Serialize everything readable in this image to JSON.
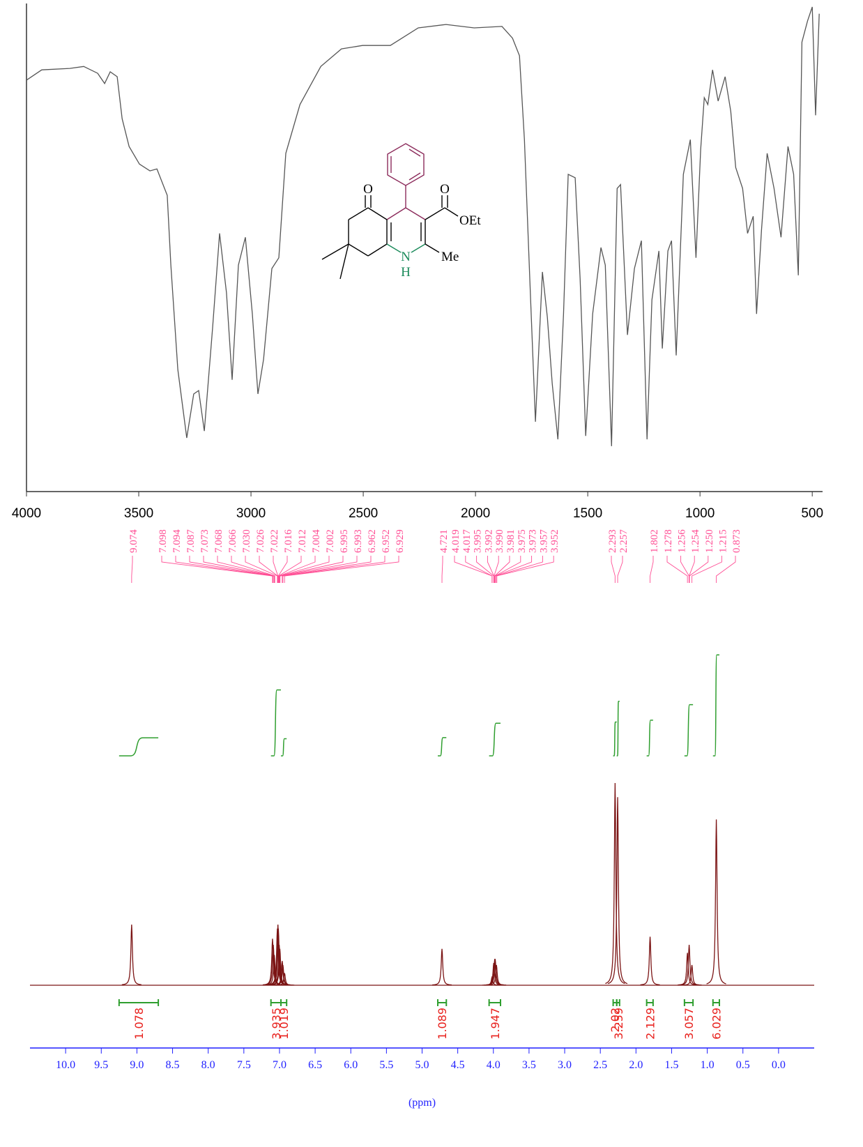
{
  "chart_data": [
    {
      "type": "line",
      "color": "#555555",
      "xlim": [
        4000,
        454
      ],
      "ylim": [
        0,
        100
      ],
      "xticks": [
        4000,
        3500,
        3000,
        2500,
        2000,
        1500,
        1000,
        500
      ],
      "x": [
        4000,
        3932,
        3807,
        3745,
        3683,
        3652,
        3627,
        3596,
        3574,
        3543,
        3497,
        3450,
        3419,
        3373,
        3357,
        3326,
        3286,
        3255,
        3233,
        3208,
        3171,
        3140,
        3109,
        3084,
        3056,
        3025,
        2994,
        2969,
        2944,
        2907,
        2876,
        2845,
        2782,
        2689,
        2597,
        2503,
        2379,
        2255,
        2131,
        2006,
        1882,
        1835,
        1804,
        1782,
        1758,
        1733,
        1702,
        1680,
        1658,
        1633,
        1608,
        1587,
        1556,
        1534,
        1509,
        1478,
        1441,
        1422,
        1394,
        1369,
        1354,
        1323,
        1292,
        1261,
        1236,
        1214,
        1183,
        1168,
        1143,
        1127,
        1106,
        1074,
        1043,
        1018,
        997,
        981,
        965,
        944,
        919,
        888,
        863,
        841,
        810,
        788,
        763,
        748,
        726,
        701,
        670,
        639,
        608,
        583,
        562,
        546,
        521,
        500,
        485,
        469
      ],
      "values": [
        84.3,
        86.4,
        86.7,
        87.1,
        85.7,
        83.6,
        86,
        85,
        76.4,
        70.7,
        67.1,
        65.7,
        66.1,
        60.7,
        46.4,
        25,
        11,
        20,
        20.7,
        12.4,
        33.6,
        52.9,
        40.7,
        22.9,
        46.4,
        52.1,
        36.4,
        20,
        27.1,
        45.7,
        47.9,
        69.3,
        79.3,
        87.1,
        90.7,
        91.4,
        91.4,
        95,
        95.7,
        95,
        95.3,
        92.9,
        89.3,
        72.1,
        43.6,
        14.3,
        45,
        35.7,
        22.1,
        10.7,
        36.4,
        65,
        64.3,
        43.6,
        11.4,
        36.4,
        50,
        46.4,
        9.3,
        62.1,
        62.9,
        32.1,
        45.7,
        51.4,
        10.7,
        39.3,
        49.3,
        29.3,
        49.3,
        51.4,
        27.9,
        65,
        72.1,
        47.9,
        70,
        80.7,
        79.3,
        86.4,
        80,
        85,
        77.9,
        66.4,
        62.1,
        52.9,
        56.4,
        36.4,
        53.6,
        69.3,
        62.1,
        52.1,
        70.7,
        65,
        44.3,
        92.1,
        96.4,
        99.3,
        77.1,
        97.9
      ]
    },
    {
      "type": "nmr",
      "color": "#7b1414",
      "xlim": [
        10.5,
        -0.5
      ],
      "ylim": [
        0,
        100
      ],
      "xlabel": "(ppm)",
      "axis_color": "#1f1fff",
      "xticks": [
        {
          "value": 10,
          "label": "10.0"
        },
        9.5,
        {
          "value": 9,
          "label": "9.0"
        },
        8.5,
        {
          "value": 8,
          "label": "8.0"
        },
        7.5,
        {
          "value": 7,
          "label": "7.0"
        },
        6.5,
        {
          "value": 6,
          "label": "6.0"
        },
        5.5,
        {
          "value": 5,
          "label": "5.0"
        },
        4.5,
        {
          "value": 4,
          "label": "4.0"
        },
        3.5,
        {
          "value": 3,
          "label": "3.0"
        },
        2.5,
        {
          "value": 2,
          "label": "2.0"
        },
        1.5,
        {
          "value": 1,
          "label": "1.0"
        },
        0.5,
        {
          "value": 0,
          "label": "0.0"
        }
      ],
      "x": [
        9.074,
        7.098,
        7.087,
        7.073,
        7.03,
        7.022,
        7.016,
        7.004,
        6.995,
        6.962,
        6.952,
        6.929,
        4.721,
        4.019,
        3.995,
        3.981,
        3.975,
        3.957,
        2.293,
        2.257,
        1.802,
        1.278,
        1.254,
        1.215,
        0.873
      ],
      "values": [
        30,
        23,
        20,
        15,
        28,
        30,
        28,
        20,
        18,
        12,
        10,
        6,
        18,
        4,
        11,
        13,
        13,
        10,
        100,
        93,
        24,
        16,
        20,
        10,
        82
      ],
      "peak_label_color": "#ff4d94",
      "peak_labels": [
        [
          "9.074"
        ],
        [
          "7.098",
          "7.094",
          "7.087",
          "7.073",
          "7.068",
          "7.066",
          "7.030",
          "7.026",
          "7.022",
          "7.016",
          "7.012",
          "7.004",
          "7.002",
          "6.995",
          "6.993",
          "6.962",
          "6.952",
          "6.929"
        ],
        [
          "4.721"
        ],
        [
          "4.019",
          "4.017",
          "3.995",
          "3.992",
          "3.990",
          "3.981",
          "3.975",
          "3.973",
          "3.957",
          "3.952"
        ],
        [
          "2.293",
          "2.257"
        ],
        [
          "1.802"
        ],
        [
          "1.278",
          "1.256",
          "1.254",
          "1.250",
          "1.215",
          "0.873"
        ]
      ],
      "integrals": {
        "color": "#2e9e2e",
        "label_color": "#e8201c",
        "from": [
          9.25,
          7.12,
          6.98,
          4.78,
          4.06,
          2.32,
          2.27,
          1.85,
          1.32,
          0.92
        ],
        "to": [
          8.7,
          6.98,
          6.9,
          4.66,
          3.9,
          2.27,
          2.23,
          1.76,
          1.2,
          0.83
        ],
        "values": [
          1.078,
          3.935,
          1.019,
          1.089,
          1.947,
          2.02,
          3.259,
          2.129,
          3.057,
          6.029
        ]
      }
    }
  ],
  "structure": {
    "labels": [
      "O",
      "O",
      "OEt",
      "N",
      "H",
      "Me"
    ]
  }
}
